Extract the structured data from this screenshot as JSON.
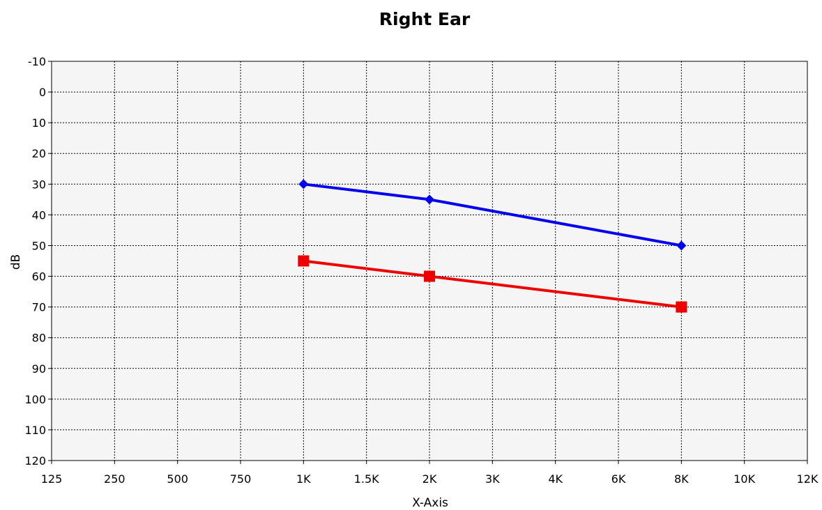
{
  "chart_data": {
    "type": "line",
    "title": "Right Ear",
    "xlabel": "X-Axis",
    "ylabel": "dB",
    "categories": [
      "125",
      "250",
      "500",
      "750",
      "1K",
      "1.5K",
      "2K",
      "3K",
      "4K",
      "6K",
      "8K",
      "10K",
      "12K"
    ],
    "y_ticks": [
      "-10",
      "0",
      "10",
      "20",
      "30",
      "40",
      "50",
      "60",
      "70",
      "80",
      "90",
      "100",
      "110",
      "120"
    ],
    "ylim": [
      -10,
      120
    ],
    "y_inverted": true,
    "grid": true,
    "plot_background": "#f5f5f5",
    "series": [
      {
        "color": "#0000ee",
        "marker": "diamond",
        "points": [
          {
            "x": "1K",
            "y": 30
          },
          {
            "x": "2K",
            "y": 35
          },
          {
            "x": "8K",
            "y": 50
          }
        ]
      },
      {
        "color": "#ee0000",
        "marker": "square",
        "points": [
          {
            "x": "1K",
            "y": 55
          },
          {
            "x": "2K",
            "y": 60
          },
          {
            "x": "8K",
            "y": 70
          }
        ]
      }
    ]
  }
}
